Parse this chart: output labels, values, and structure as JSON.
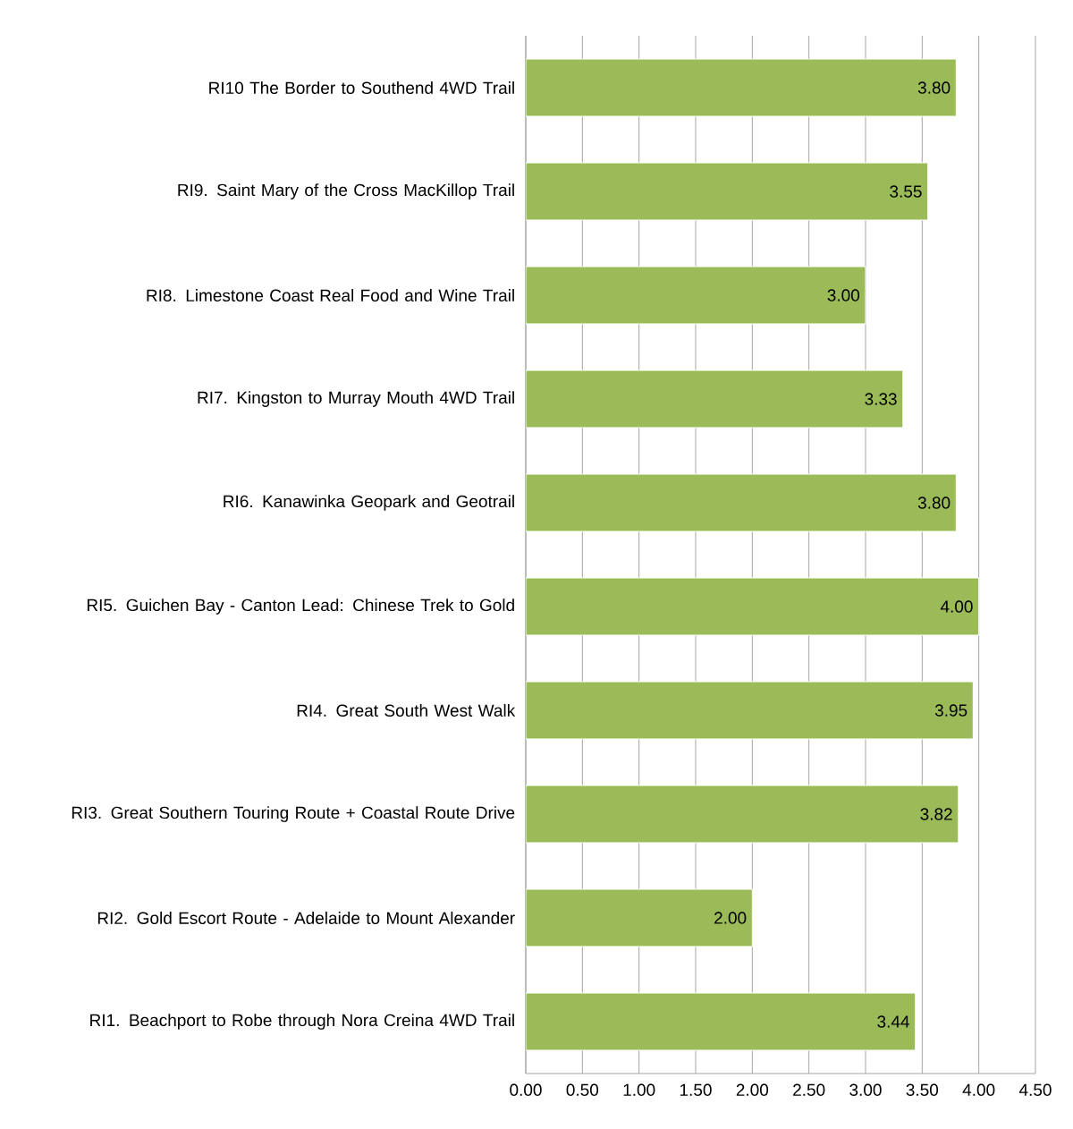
{
  "chart_data": {
    "type": "bar",
    "orientation": "horizontal",
    "color": "#9bbb59",
    "grid": "x",
    "categories": [
      "RI10 The Border to Southend 4WD Trail",
      "RI9. Saint Mary of the Cross MacKillop Trail",
      "RI8. Limestone Coast Real Food and Wine Trail",
      "RI7. Kingston to Murray Mouth 4WD Trail",
      "RI6. Kanawinka Geopark and Geotrail",
      "RI5. Guichen Bay - Canton Lead: Chinese Trek to Gold",
      "RI4. Great South West Walk",
      "RI3. Great Southern Touring Route + Coastal Route Drive",
      "RI2. Gold Escort Route - Adelaide to Mount Alexander",
      "RI1. Beachport to Robe through Nora Creina 4WD Trail"
    ],
    "values": [
      3.8,
      3.55,
      3.0,
      3.33,
      3.8,
      4.0,
      3.95,
      3.82,
      2.0,
      3.44
    ],
    "value_labels": [
      "3.80",
      "3.55",
      "3.00",
      "3.33",
      "3.80",
      "4.00",
      "3.95",
      "3.82",
      "2.00",
      "3.44"
    ],
    "xlim": [
      0,
      4.5
    ],
    "xticks": [
      {
        "value": 0,
        "label": "0.00"
      },
      {
        "value": 0.5,
        "label": "0.50"
      },
      {
        "value": 1,
        "label": "1.00"
      },
      {
        "value": 1.5,
        "label": "1.50"
      },
      {
        "value": 2,
        "label": "2.00"
      },
      {
        "value": 2.5,
        "label": "2.50"
      },
      {
        "value": 3,
        "label": "3.00"
      },
      {
        "value": 3.5,
        "label": "3.50"
      },
      {
        "value": 4,
        "label": "4.00"
      },
      {
        "value": 4.5,
        "label": "4.50"
      }
    ]
  }
}
